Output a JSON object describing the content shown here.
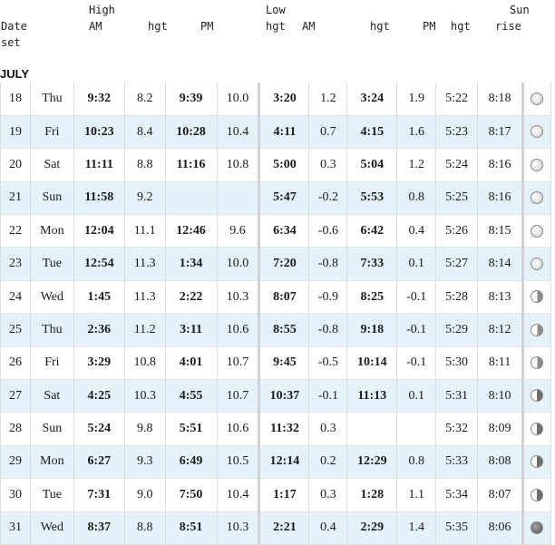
{
  "header": {
    "high": "High",
    "low": "Low",
    "sun": "Sun",
    "date": "Date",
    "am_high": "AM",
    "hgt1": "hgt",
    "pm_high": "PM",
    "hgt2": "hgt",
    "am_low": "AM",
    "hgt3": "hgt",
    "pm_low": "PM",
    "hgt4": "hgt",
    "rise": "rise",
    "set": "set"
  },
  "month": "JULY",
  "rows": [
    {
      "date": "18",
      "day": "Thu",
      "h_am": "9:32",
      "h_am_hgt": "8.2",
      "h_pm": "9:39",
      "h_pm_hgt": "10.0",
      "l_am": "3:20",
      "l_am_hgt": "1.2",
      "l_pm": "3:24",
      "l_pm_hgt": "1.9",
      "rise": "5:22",
      "set": "8:18",
      "moon": "full"
    },
    {
      "date": "19",
      "day": "Fri",
      "h_am": "10:23",
      "h_am_hgt": "8.4",
      "h_pm": "10:28",
      "h_pm_hgt": "10.4",
      "l_am": "4:11",
      "l_am_hgt": "0.7",
      "l_pm": "4:15",
      "l_pm_hgt": "1.6",
      "rise": "5:23",
      "set": "8:17",
      "moon": "full"
    },
    {
      "date": "20",
      "day": "Sat",
      "h_am": "11:11",
      "h_am_hgt": "8.8",
      "h_pm": "11:16",
      "h_pm_hgt": "10.8",
      "l_am": "5:00",
      "l_am_hgt": "0.3",
      "l_pm": "5:04",
      "l_pm_hgt": "1.2",
      "rise": "5:24",
      "set": "8:16",
      "moon": "full"
    },
    {
      "date": "21",
      "day": "Sun",
      "h_am": "11:58",
      "h_am_hgt": "9.2",
      "h_pm": "",
      "h_pm_hgt": "",
      "l_am": "5:47",
      "l_am_hgt": "-0.2",
      "l_pm": "5:53",
      "l_pm_hgt": "0.8",
      "rise": "5:25",
      "set": "8:16",
      "moon": "full"
    },
    {
      "date": "22",
      "day": "Mon",
      "h_am": "12:04",
      "h_am_hgt": "11.1",
      "h_pm": "12:46",
      "h_pm_hgt": "9.6",
      "l_am": "6:34",
      "l_am_hgt": "-0.6",
      "l_pm": "6:42",
      "l_pm_hgt": "0.4",
      "rise": "5:26",
      "set": "8:15",
      "moon": "full"
    },
    {
      "date": "23",
      "day": "Tue",
      "h_am": "12:54",
      "h_am_hgt": "11.3",
      "h_pm": "1:34",
      "h_pm_hgt": "10.0",
      "l_am": "7:20",
      "l_am_hgt": "-0.8",
      "l_pm": "7:33",
      "l_pm_hgt": "0.1",
      "rise": "5:27",
      "set": "8:14",
      "moon": "full"
    },
    {
      "date": "24",
      "day": "Wed",
      "h_am": "1:45",
      "h_am_hgt": "11.3",
      "h_pm": "2:22",
      "h_pm_hgt": "10.3",
      "l_am": "8:07",
      "l_am_hgt": "-0.9",
      "l_pm": "8:25",
      "l_pm_hgt": "-0.1",
      "rise": "5:28",
      "set": "8:13",
      "moon": "waning"
    },
    {
      "date": "25",
      "day": "Thu",
      "h_am": "2:36",
      "h_am_hgt": "11.2",
      "h_pm": "3:11",
      "h_pm_hgt": "10.6",
      "l_am": "8:55",
      "l_am_hgt": "-0.8",
      "l_pm": "9:18",
      "l_pm_hgt": "-0.1",
      "rise": "5:29",
      "set": "8:12",
      "moon": "waning"
    },
    {
      "date": "26",
      "day": "Fri",
      "h_am": "3:29",
      "h_am_hgt": "10.8",
      "h_pm": "4:01",
      "h_pm_hgt": "10.7",
      "l_am": "9:45",
      "l_am_hgt": "-0.5",
      "l_pm": "10:14",
      "l_pm_hgt": "-0.1",
      "rise": "5:30",
      "set": "8:11",
      "moon": "waning"
    },
    {
      "date": "27",
      "day": "Sat",
      "h_am": "4:25",
      "h_am_hgt": "10.3",
      "h_pm": "4:55",
      "h_pm_hgt": "10.7",
      "l_am": "10:37",
      "l_am_hgt": "-0.1",
      "l_pm": "11:13",
      "l_pm_hgt": "0.1",
      "rise": "5:31",
      "set": "8:10",
      "moon": "half"
    },
    {
      "date": "28",
      "day": "Sun",
      "h_am": "5:24",
      "h_am_hgt": "9.8",
      "h_pm": "5:51",
      "h_pm_hgt": "10.6",
      "l_am": "11:32",
      "l_am_hgt": "0.3",
      "l_pm": "",
      "l_pm_hgt": "",
      "rise": "5:32",
      "set": "8:09",
      "moon": "half"
    },
    {
      "date": "29",
      "day": "Mon",
      "h_am": "6:27",
      "h_am_hgt": "9.3",
      "h_pm": "6:49",
      "h_pm_hgt": "10.5",
      "l_am": "12:14",
      "l_am_hgt": "0.2",
      "l_pm": "12:29",
      "l_pm_hgt": "0.8",
      "rise": "5:33",
      "set": "8:08",
      "moon": "half"
    },
    {
      "date": "30",
      "day": "Tue",
      "h_am": "7:31",
      "h_am_hgt": "9.0",
      "h_pm": "7:50",
      "h_pm_hgt": "10.4",
      "l_am": "1:17",
      "l_am_hgt": "0.3",
      "l_pm": "1:28",
      "l_pm_hgt": "1.1",
      "rise": "5:34",
      "set": "8:07",
      "moon": "half"
    },
    {
      "date": "31",
      "day": "Wed",
      "h_am": "8:37",
      "h_am_hgt": "8.8",
      "h_pm": "8:51",
      "h_pm_hgt": "10.3",
      "l_am": "2:21",
      "l_am_hgt": "0.4",
      "l_pm": "2:29",
      "l_pm_hgt": "1.4",
      "rise": "5:35",
      "set": "8:06",
      "moon": "new"
    }
  ],
  "colors": {
    "alt_row": "#e6f2fa",
    "grid": "#d9dde2"
  }
}
